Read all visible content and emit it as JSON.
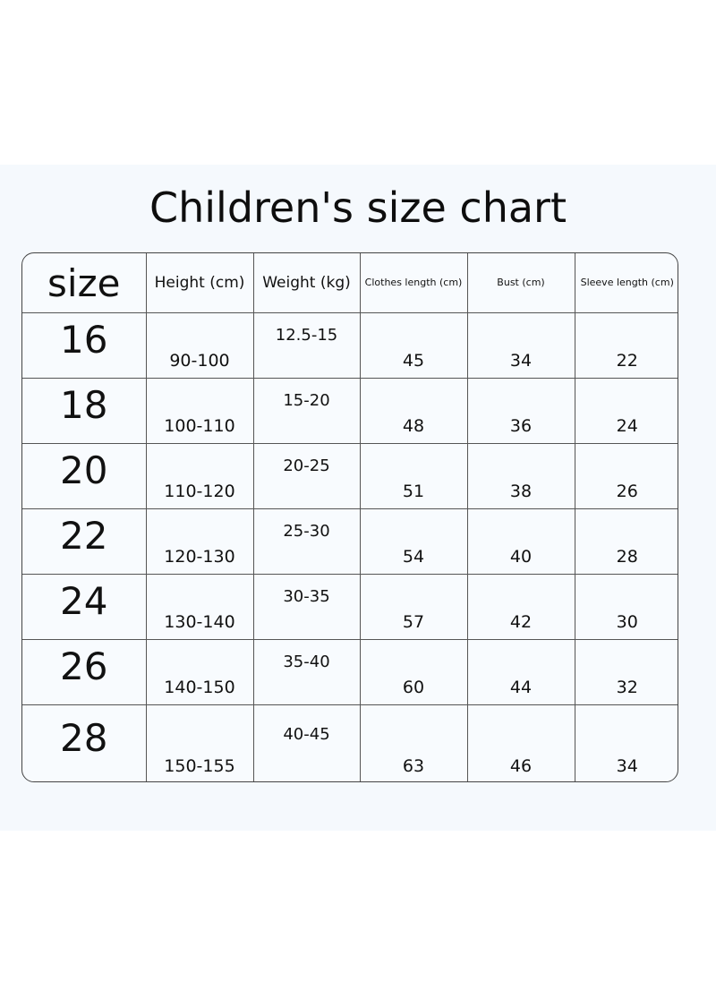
{
  "title": "Children's size chart",
  "columns": [
    "size",
    "Height (cm)",
    "Weight (kg)",
    "Clothes length (cm)",
    "Bust (cm)",
    "Sleeve length (cm)"
  ],
  "rows": [
    {
      "size": "16",
      "height": "90-100",
      "weight": "12.5-15",
      "clothes_length": "45",
      "bust": "34",
      "sleeve_length": "22"
    },
    {
      "size": "18",
      "height": "100-110",
      "weight": "15-20",
      "clothes_length": "48",
      "bust": "36",
      "sleeve_length": "24"
    },
    {
      "size": "20",
      "height": "110-120",
      "weight": "20-25",
      "clothes_length": "51",
      "bust": "38",
      "sleeve_length": "26"
    },
    {
      "size": "22",
      "height": "120-130",
      "weight": "25-30",
      "clothes_length": "54",
      "bust": "40",
      "sleeve_length": "28"
    },
    {
      "size": "24",
      "height": "130-140",
      "weight": "30-35",
      "clothes_length": "57",
      "bust": "42",
      "sleeve_length": "30"
    },
    {
      "size": "26",
      "height": "140-150",
      "weight": "35-40",
      "clothes_length": "60",
      "bust": "44",
      "sleeve_length": "32"
    },
    {
      "size": "28",
      "height": "150-155",
      "weight": "40-45",
      "clothes_length": "63",
      "bust": "46",
      "sleeve_length": "34"
    }
  ]
}
